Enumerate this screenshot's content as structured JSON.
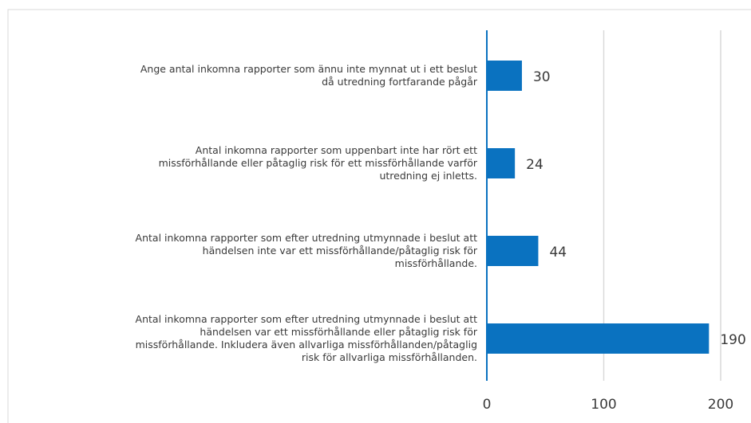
{
  "chart_data": {
    "type": "bar",
    "orientation": "horizontal",
    "categories": [
      "Ange antal inkomna rapporter som ännu inte mynnat ut i ett beslut då utredning fortfarande pågår",
      "Antal inkomna rapporter som uppenbart inte har rört ett missförhållande eller påtaglig risk för ett missförhållande varför utredning ej inletts.",
      "Antal inkomna rapporter som efter utredning utmynnade i beslut att händelsen inte var ett missförhållande/påtaglig risk för missförhållande.",
      "Antal inkomna rapporter som efter utredning utmynnade i beslut att händelsen var ett missförhållande eller påtaglig risk för missförhållande. Inkludera även allvarliga missförhållanden/påtaglig risk för allvarliga missförhållanden."
    ],
    "values": [
      30,
      24,
      44,
      190
    ],
    "color": "#0a72c0",
    "xlim": [
      0,
      200
    ],
    "xticks": [
      0,
      100,
      200
    ],
    "grid": true
  }
}
